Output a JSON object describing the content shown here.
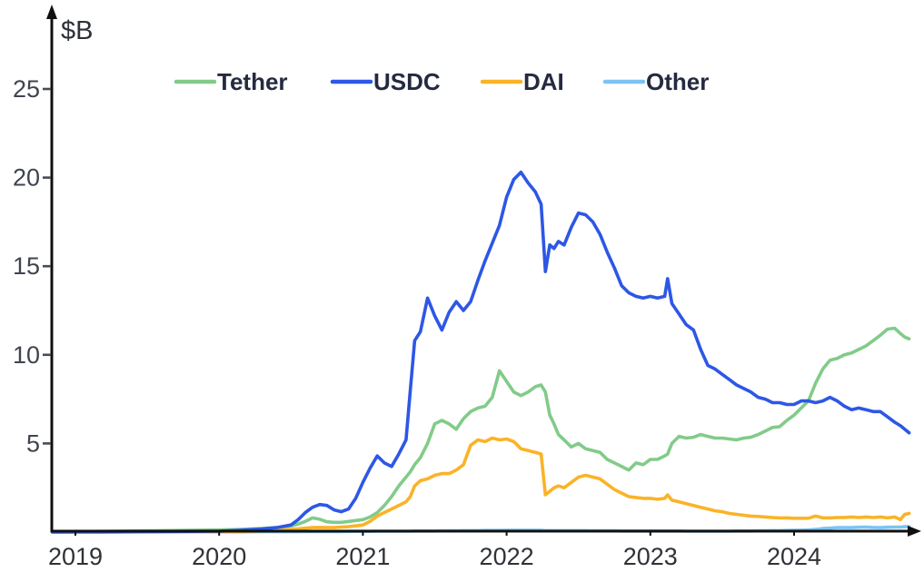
{
  "chart_data": {
    "type": "line",
    "title": "",
    "ylabel": "$B",
    "x_unit": "year",
    "yticks": [
      5,
      10,
      15,
      20,
      25
    ],
    "xticks": [
      2019,
      2020,
      2021,
      2022,
      2023,
      2024
    ],
    "xlim": [
      2018.84,
      2024.85
    ],
    "ylim": [
      0,
      29
    ],
    "grid": false,
    "legend_position": "top-center",
    "x": [
      2018.84,
      2019,
      2019.2,
      2019.4,
      2019.6,
      2019.8,
      2020,
      2020.15,
      2020.3,
      2020.4,
      2020.5,
      2020.55,
      2020.6,
      2020.65,
      2020.7,
      2020.75,
      2020.8,
      2020.85,
      2020.9,
      2020.95,
      2021,
      2021.05,
      2021.1,
      2021.15,
      2021.2,
      2021.25,
      2021.3,
      2021.33,
      2021.36,
      2021.4,
      2021.45,
      2021.5,
      2021.55,
      2021.6,
      2021.65,
      2021.7,
      2021.75,
      2021.8,
      2021.85,
      2021.9,
      2021.95,
      2022,
      2022.05,
      2022.1,
      2022.15,
      2022.2,
      2022.24,
      2022.27,
      2022.3,
      2022.33,
      2022.36,
      2022.4,
      2022.45,
      2022.5,
      2022.55,
      2022.6,
      2022.65,
      2022.7,
      2022.75,
      2022.8,
      2022.85,
      2022.9,
      2022.95,
      2023,
      2023.05,
      2023.1,
      2023.12,
      2023.15,
      2023.2,
      2023.25,
      2023.3,
      2023.35,
      2023.4,
      2023.45,
      2023.5,
      2023.55,
      2023.6,
      2023.65,
      2023.7,
      2023.75,
      2023.8,
      2023.85,
      2023.9,
      2023.95,
      2024,
      2024.05,
      2024.1,
      2024.15,
      2024.2,
      2024.25,
      2024.3,
      2024.35,
      2024.4,
      2024.45,
      2024.5,
      2024.55,
      2024.6,
      2024.65,
      2024.7,
      2024.74,
      2024.77,
      2024.8
    ],
    "series": [
      {
        "name": "Tether",
        "color": "#82cb89",
        "values": [
          0.02,
          0.03,
          0.04,
          0.06,
          0.08,
          0.1,
          0.12,
          0.15,
          0.2,
          0.25,
          0.35,
          0.45,
          0.6,
          0.8,
          0.72,
          0.58,
          0.55,
          0.55,
          0.6,
          0.65,
          0.7,
          0.85,
          1.1,
          1.5,
          2,
          2.6,
          3.1,
          3.4,
          3.8,
          4.2,
          5,
          6.1,
          6.3,
          6.1,
          5.8,
          6.4,
          6.8,
          7,
          7.1,
          7.6,
          9.1,
          8.5,
          7.9,
          7.7,
          7.9,
          8.2,
          8.3,
          7.9,
          6.6,
          6.1,
          5.5,
          5.2,
          4.8,
          5,
          4.7,
          4.6,
          4.5,
          4.1,
          3.9,
          3.7,
          3.5,
          3.9,
          3.8,
          4.1,
          4.1,
          4.3,
          4.4,
          5,
          5.4,
          5.3,
          5.35,
          5.5,
          5.4,
          5.3,
          5.3,
          5.25,
          5.2,
          5.3,
          5.35,
          5.5,
          5.7,
          5.9,
          5.95,
          6.3,
          6.6,
          7,
          7.4,
          8.4,
          9.2,
          9.7,
          9.8,
          10,
          10.1,
          10.3,
          10.5,
          10.8,
          11.1,
          11.45,
          11.5,
          11.2,
          11,
          10.9
        ]
      },
      {
        "name": "USDC",
        "color": "#2d57e5",
        "values": [
          0,
          0.01,
          0.01,
          0.02,
          0.03,
          0.04,
          0.05,
          0.1,
          0.18,
          0.25,
          0.4,
          0.7,
          1.1,
          1.4,
          1.55,
          1.5,
          1.25,
          1.15,
          1.3,
          1.9,
          2.8,
          3.6,
          4.3,
          3.9,
          3.7,
          4.4,
          5.2,
          8,
          10.8,
          11.3,
          13.2,
          12.2,
          11.4,
          12.4,
          13,
          12.5,
          13,
          14.2,
          15.3,
          16.3,
          17.3,
          18.9,
          19.9,
          20.3,
          19.7,
          19.2,
          18.5,
          14.7,
          16.2,
          16,
          16.4,
          16.2,
          17.2,
          18,
          17.9,
          17.5,
          16.8,
          15.8,
          14.9,
          13.9,
          13.5,
          13.3,
          13.2,
          13.3,
          13.2,
          13.3,
          14.3,
          12.9,
          12.3,
          11.7,
          11.4,
          10.3,
          9.4,
          9.2,
          8.9,
          8.6,
          8.3,
          8.1,
          7.9,
          7.6,
          7.5,
          7.3,
          7.3,
          7.2,
          7.2,
          7.4,
          7.4,
          7.3,
          7.4,
          7.6,
          7.4,
          7.1,
          6.9,
          7,
          6.9,
          6.8,
          6.8,
          6.5,
          6.2,
          6,
          5.8,
          5.6
        ]
      },
      {
        "name": "DAI",
        "color": "#fab327",
        "values": [
          0,
          0,
          0.01,
          0.01,
          0.02,
          0.02,
          0.03,
          0.04,
          0.06,
          0.1,
          0.15,
          0.18,
          0.22,
          0.25,
          0.26,
          0.25,
          0.25,
          0.28,
          0.3,
          0.35,
          0.4,
          0.6,
          0.9,
          1.1,
          1.3,
          1.5,
          1.7,
          2,
          2.6,
          2.9,
          3,
          3.2,
          3.3,
          3.3,
          3.5,
          3.8,
          4.9,
          5.2,
          5.1,
          5.3,
          5.2,
          5.25,
          5.1,
          4.7,
          4.6,
          4.5,
          4.4,
          2.1,
          2.3,
          2.5,
          2.6,
          2.5,
          2.8,
          3.1,
          3.2,
          3.1,
          3,
          2.7,
          2.4,
          2.2,
          2,
          1.95,
          1.9,
          1.9,
          1.85,
          1.9,
          2.1,
          1.8,
          1.7,
          1.6,
          1.5,
          1.4,
          1.3,
          1.2,
          1.15,
          1.05,
          1,
          0.95,
          0.9,
          0.88,
          0.85,
          0.82,
          0.8,
          0.8,
          0.78,
          0.78,
          0.78,
          0.9,
          0.8,
          0.8,
          0.82,
          0.82,
          0.85,
          0.82,
          0.85,
          0.82,
          0.85,
          0.8,
          0.85,
          0.7,
          1,
          1.05
        ]
      },
      {
        "name": "Other",
        "color": "#7cc4f3",
        "values": [
          0,
          0,
          0,
          0.01,
          0.01,
          0.01,
          0.01,
          0.01,
          0.02,
          0.02,
          0.02,
          0.02,
          0.03,
          0.03,
          0.03,
          0.03,
          0.03,
          0.03,
          0.04,
          0.04,
          0.04,
          0.04,
          0.05,
          0.05,
          0.05,
          0.05,
          0.05,
          0.05,
          0.06,
          0.06,
          0.06,
          0.06,
          0.07,
          0.07,
          0.07,
          0.08,
          0.08,
          0.08,
          0.09,
          0.09,
          0.09,
          0.1,
          0.1,
          0.1,
          0.1,
          0.1,
          0.1,
          0.08,
          0.08,
          0.08,
          0.08,
          0.08,
          0.08,
          0.08,
          0.08,
          0.07,
          0.07,
          0.07,
          0.07,
          0.06,
          0.06,
          0.06,
          0.06,
          0.06,
          0.06,
          0.06,
          0.06,
          0.06,
          0.06,
          0.05,
          0.05,
          0.05,
          0.05,
          0.05,
          0.05,
          0.05,
          0.06,
          0.06,
          0.06,
          0.07,
          0.07,
          0.08,
          0.08,
          0.09,
          0.1,
          0.11,
          0.12,
          0.15,
          0.2,
          0.22,
          0.25,
          0.25,
          0.25,
          0.27,
          0.28,
          0.26,
          0.25,
          0.27,
          0.28,
          0.28,
          0.3,
          0.3
        ]
      }
    ]
  }
}
